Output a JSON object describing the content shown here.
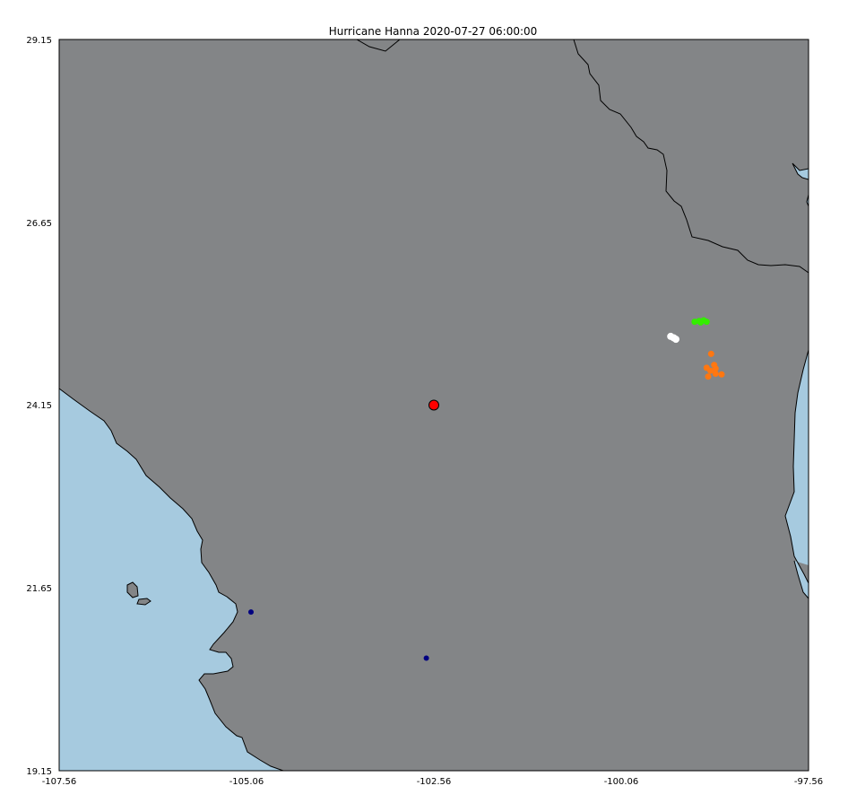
{
  "map": {
    "title": "Hurricane Hanna 2020-07-27 06:00:00",
    "lon_range": [
      -107.56,
      -97.56
    ],
    "lat_range": [
      19.15,
      29.15
    ],
    "xticks": [
      "-107.56",
      "-105.06",
      "-102.56",
      "-100.06",
      "-97.56"
    ],
    "yticks": [
      "29.15",
      "26.65",
      "24.15",
      "21.65",
      "19.15"
    ],
    "colors": {
      "land": "#838587",
      "water": "#a6cadf",
      "coastline": "#000000",
      "storm_center": "#ff0000",
      "green": "#33ee00",
      "white": "#ffffff",
      "orange": "#ff7711",
      "navy": "#000080"
    },
    "storm_center": {
      "lon": -102.56,
      "lat": 24.15
    },
    "points": {
      "green": [
        {
          "lon": -99.08,
          "lat": 25.29
        },
        {
          "lon": -99.02,
          "lat": 25.3
        },
        {
          "lon": -98.96,
          "lat": 25.31
        },
        {
          "lon": -98.92,
          "lat": 25.29
        },
        {
          "lon": -99.0,
          "lat": 25.28
        }
      ],
      "white": [
        {
          "lon": -99.4,
          "lat": 25.09
        },
        {
          "lon": -99.33,
          "lat": 25.05
        },
        {
          "lon": -99.36,
          "lat": 25.07
        }
      ],
      "orange": [
        {
          "lon": -98.86,
          "lat": 24.85
        },
        {
          "lon": -98.82,
          "lat": 24.7
        },
        {
          "lon": -98.92,
          "lat": 24.66
        },
        {
          "lon": -98.87,
          "lat": 24.62
        },
        {
          "lon": -98.8,
          "lat": 24.58
        },
        {
          "lon": -98.72,
          "lat": 24.57
        },
        {
          "lon": -98.9,
          "lat": 24.54
        },
        {
          "lon": -98.8,
          "lat": 24.65
        }
      ],
      "navy": [
        {
          "lon": -105.0,
          "lat": 21.32
        },
        {
          "lon": -102.66,
          "lat": 20.69
        }
      ]
    }
  }
}
